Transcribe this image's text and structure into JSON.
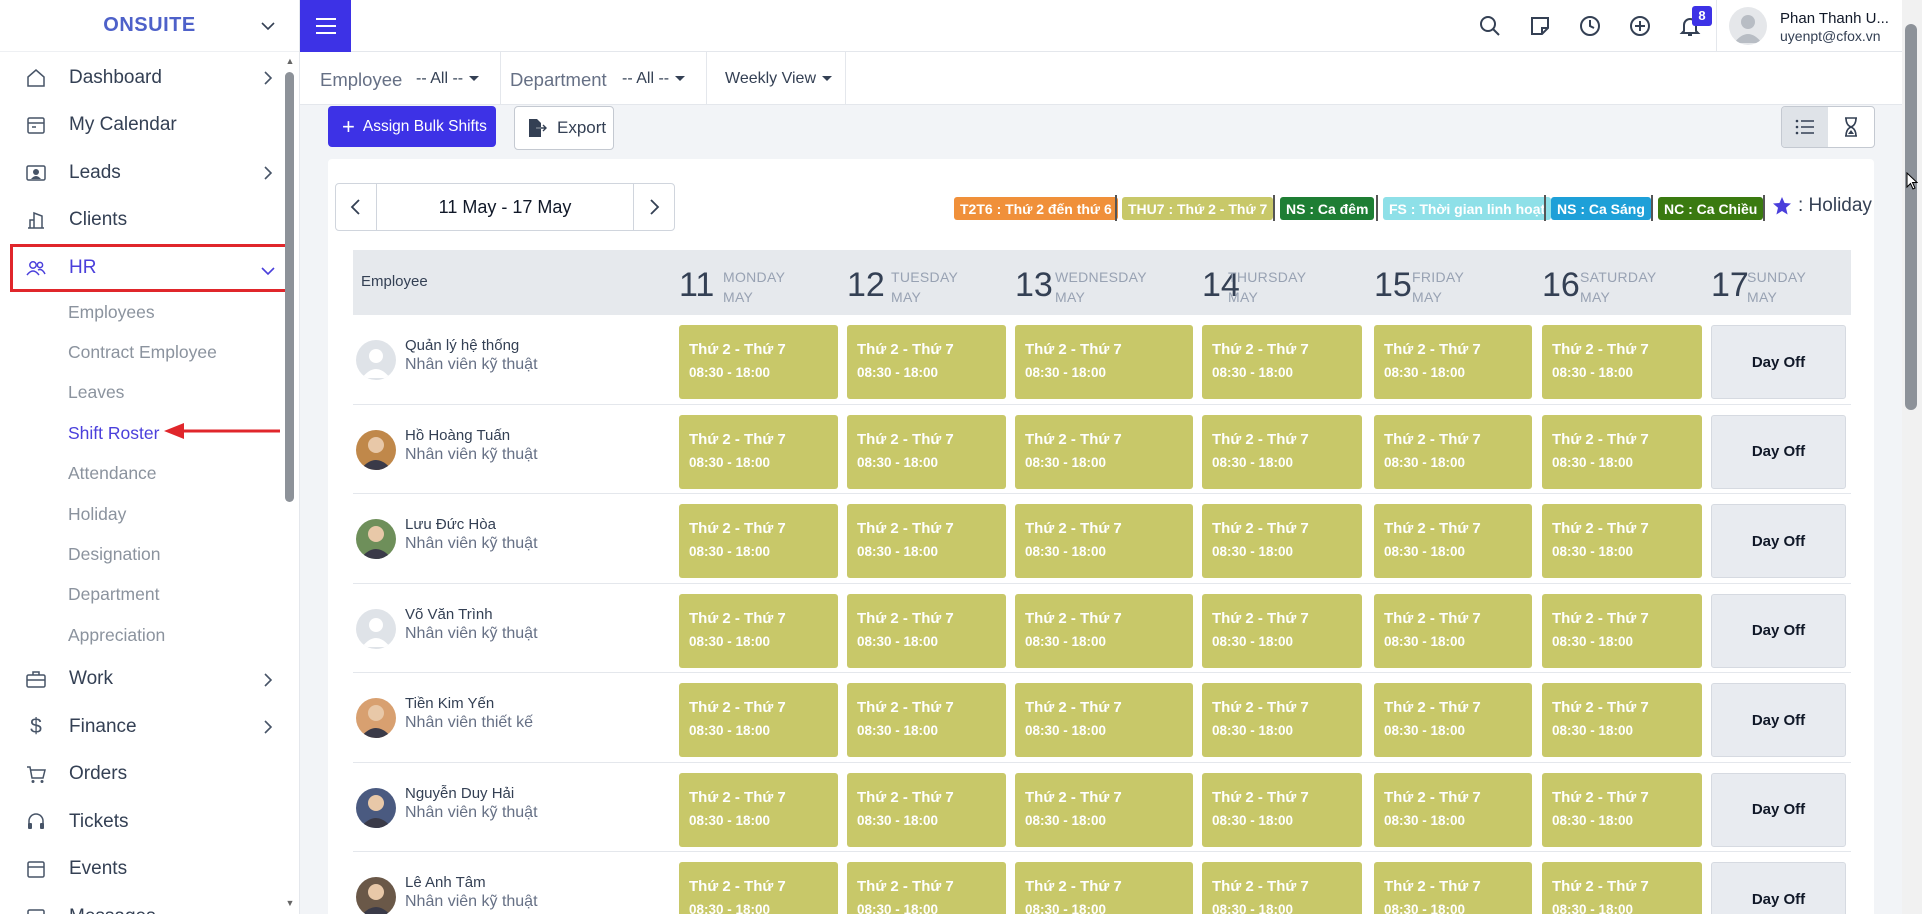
{
  "brand": {
    "name": "ONSUITE"
  },
  "sidebar": {
    "items": [
      {
        "label": "Dashboard",
        "icon": "home-icon",
        "has_chevron": true
      },
      {
        "label": "My Calendar",
        "icon": "calendar-icon",
        "has_chevron": false
      },
      {
        "label": "Leads",
        "icon": "leads-icon",
        "has_chevron": true
      },
      {
        "label": "Clients",
        "icon": "building-icon",
        "has_chevron": false
      },
      {
        "label": "HR",
        "icon": "people-icon",
        "has_chevron": true,
        "active": true
      },
      {
        "label": "Work",
        "icon": "briefcase-icon",
        "has_chevron": true
      },
      {
        "label": "Finance",
        "icon": "dollar-icon",
        "has_chevron": true
      },
      {
        "label": "Orders",
        "icon": "cart-icon",
        "has_chevron": false
      },
      {
        "label": "Tickets",
        "icon": "headset-icon",
        "has_chevron": false
      },
      {
        "label": "Events",
        "icon": "event-icon",
        "has_chevron": false
      },
      {
        "label": "Messages",
        "icon": "message-icon",
        "has_chevron": false
      }
    ],
    "hr_submenu": [
      "Employees",
      "Contract Employee",
      "Leaves",
      "Shift Roster",
      "Attendance",
      "Holiday",
      "Designation",
      "Department",
      "Appreciation"
    ],
    "hr_current": "Shift Roster"
  },
  "topbar": {
    "notification_count": "8",
    "user_name": "Phan Thanh U...",
    "user_email": "uyenpt@cfox.vn"
  },
  "filters": {
    "employee_label": "Employee",
    "employee_value": "-- All --",
    "department_label": "Department",
    "department_value": "-- All --",
    "view_value": "Weekly View"
  },
  "actions": {
    "assign_label": "Assign Bulk Shifts",
    "export_label": "Export"
  },
  "week": {
    "range": "11 May - 17 May"
  },
  "legend": [
    {
      "text": "T2T6 : Thứ 2 đến thứ 6",
      "color": "#f0903a"
    },
    {
      "text": "THU7 : Thứ 2 - Thứ 7",
      "color": "#c8c869"
    },
    {
      "text": "NS : Ca đêm",
      "color": "#1e7e34"
    },
    {
      "text": "FS : Thời gian linh hoạt",
      "color": "#8ee0e8"
    },
    {
      "text": "NS : Ca Sáng",
      "color": "#1ea0d8"
    },
    {
      "text": "NC : Ca Chiều",
      "color": "#3a7a10"
    }
  ],
  "holiday_legend": ": Holiday",
  "table": {
    "employee_header": "Employee",
    "days": [
      {
        "num": "11",
        "name": "MONDAY",
        "month": "MAY"
      },
      {
        "num": "12",
        "name": "TUESDAY",
        "month": "MAY"
      },
      {
        "num": "13",
        "name": "WEDNESDAY",
        "month": "MAY"
      },
      {
        "num": "14",
        "name": "THURSDAY",
        "month": "MAY"
      },
      {
        "num": "15",
        "name": "FRIDAY",
        "month": "MAY"
      },
      {
        "num": "16",
        "name": "SATURDAY",
        "month": "MAY"
      },
      {
        "num": "17",
        "name": "SUNDAY",
        "month": "MAY"
      }
    ],
    "shift_name": "Thứ 2 - Thứ 7",
    "shift_time": "08:30 - 18:00",
    "day_off": "Day Off",
    "rows": [
      {
        "name": "Quản lý hệ thống",
        "role": "Nhân viên kỹ thuật"
      },
      {
        "name": "Hồ Hoàng Tuấn",
        "role": "Nhân viên kỹ thuật"
      },
      {
        "name": "Lưu Đức Hòa",
        "role": "Nhân viên kỹ thuật"
      },
      {
        "name": "Võ Văn Trình",
        "role": "Nhân viên kỹ thuật"
      },
      {
        "name": "Tiền Kim Yến",
        "role": "Nhân viên thiết kế"
      },
      {
        "name": "Nguyễn Duy Hải",
        "role": "Nhân viên kỹ thuật"
      },
      {
        "name": "Lê Anh Tâm",
        "role": "Nhân viên kỹ thuật"
      }
    ]
  }
}
